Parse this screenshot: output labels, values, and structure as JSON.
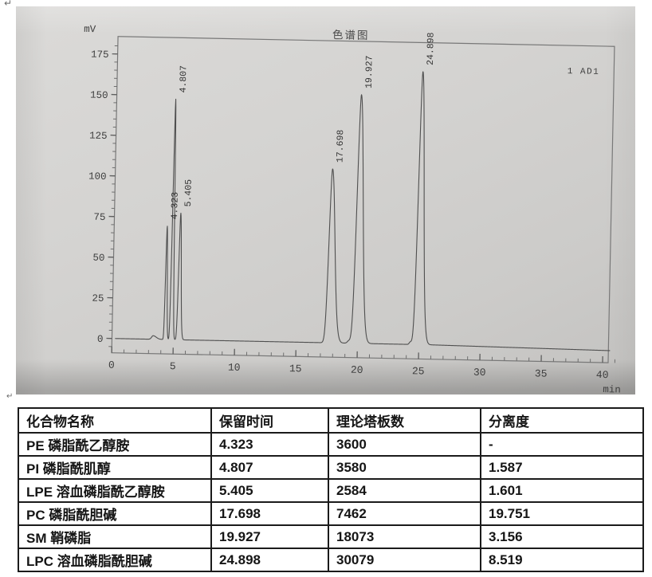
{
  "page": {
    "return_mark": "↵"
  },
  "photo": {
    "title": "色谱图",
    "y_axis_unit": "mV",
    "x_axis_unit": "min",
    "detector_label": "1 AD1"
  },
  "chart_data": {
    "type": "line",
    "title": "色谱图",
    "ylabel": "mV",
    "xlabel": "min",
    "legend": "1 AD1",
    "grid": false,
    "xlim": [
      0,
      41.2
    ],
    "ylim": [
      -9,
      186
    ],
    "x_ticks_major": [
      0,
      5,
      10,
      15,
      20,
      25,
      30,
      35,
      40
    ],
    "x_minor_step": 1,
    "y_ticks_major": [
      0,
      25,
      50,
      75,
      100,
      125,
      150,
      175
    ],
    "y_minor_step": 5,
    "baseline_mv": 0,
    "peaks": [
      {
        "rt": 4.323,
        "height_mv": 70,
        "label": "4.323",
        "sigma_l": 0.055,
        "sigma_r": 0.08
      },
      {
        "rt": 4.807,
        "height_mv": 148,
        "label": "4.807",
        "sigma_l": 0.06,
        "sigma_r": 0.085
      },
      {
        "rt": 5.405,
        "height_mv": 78,
        "label": "5.405",
        "sigma_l": 0.075,
        "sigma_r": 0.12
      },
      {
        "rt": 17.698,
        "height_mv": 107,
        "label": "17.698",
        "sigma_l": 0.17,
        "sigma_r": 0.3
      },
      {
        "rt": 19.927,
        "height_mv": 153,
        "label": "19.927",
        "sigma_l": 0.18,
        "sigma_r": 0.3
      },
      {
        "rt": 24.898,
        "height_mv": 168,
        "label": "24.898",
        "sigma_l": 0.16,
        "sigma_r": 0.27
      }
    ],
    "minor_bumps": [
      {
        "rt": 3.35,
        "height_mv": 2.2,
        "sigma_l": 0.12,
        "sigma_r": 0.25
      },
      {
        "rt": 19.3,
        "height_mv": 1.5,
        "sigma_l": 0.12,
        "sigma_r": 0.2
      },
      {
        "rt": 24.3,
        "height_mv": 1.5,
        "sigma_l": 0.08,
        "sigma_r": 0.15
      }
    ],
    "baseline_drift_end_mv": -1.4
  },
  "table": {
    "headers": [
      "化合物名称",
      "保留时间",
      "理论塔板数",
      "分离度"
    ],
    "rows": [
      [
        "PE 磷脂酰乙醇胺",
        "4.323",
        "3600",
        "-"
      ],
      [
        "PI 磷脂酰肌醇",
        "4.807",
        "3580",
        "1.587"
      ],
      [
        "LPE 溶血磷脂酰乙醇胺",
        "5.405",
        "2584",
        "1.601"
      ],
      [
        "PC 磷脂酰胆碱",
        "17.698",
        "7462",
        "19.751"
      ],
      [
        "SM 鞘磷脂",
        "19.927",
        "18073",
        "3.156"
      ],
      [
        "LPC 溶血磷脂酰胆碱",
        "24.898",
        "30079",
        "8.519"
      ]
    ]
  }
}
